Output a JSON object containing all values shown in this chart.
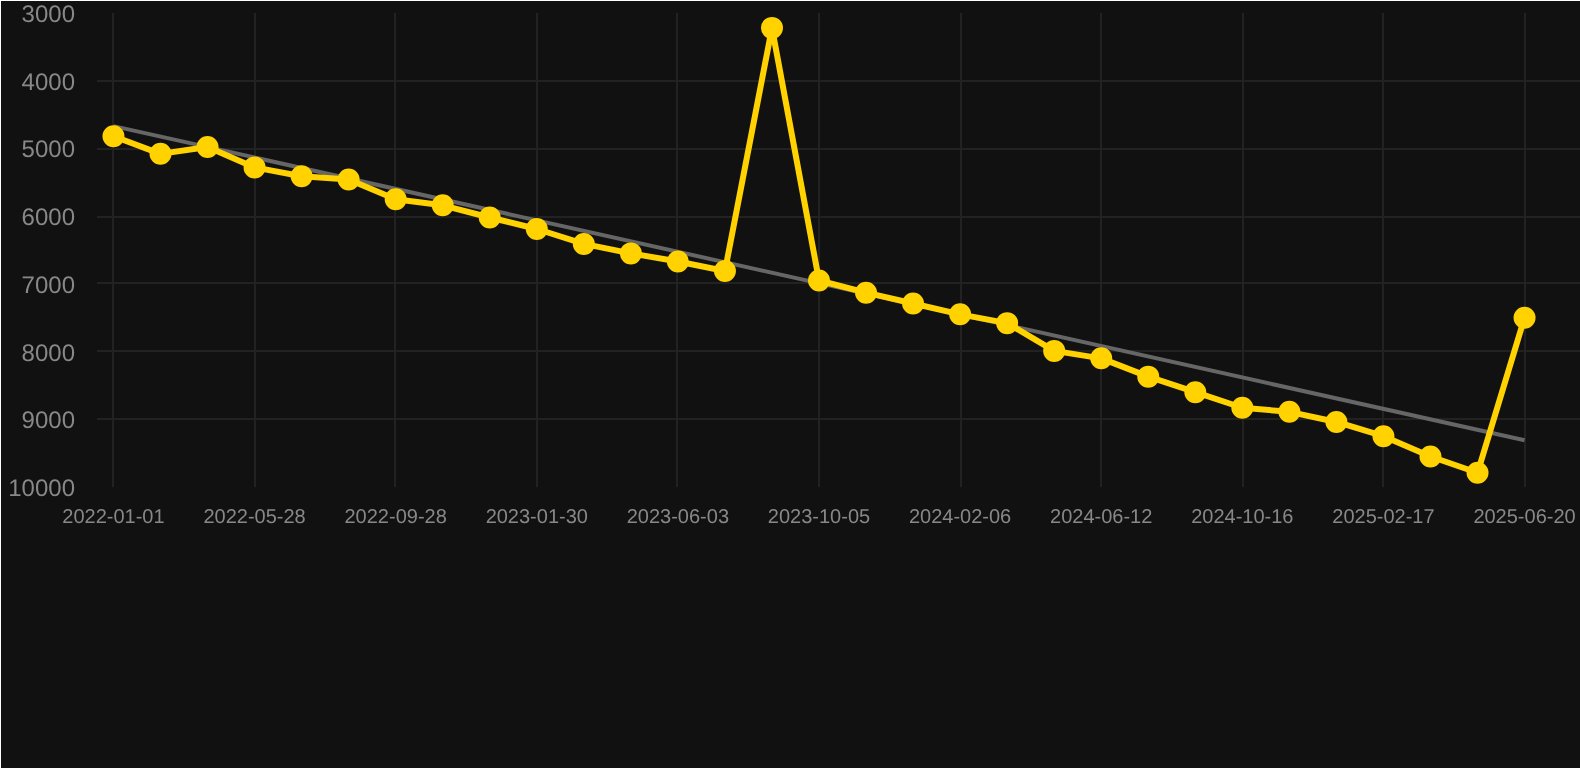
{
  "chart_data": {
    "type": "line",
    "categories": [
      "2022-01-01",
      null,
      null,
      "2022-05-28",
      null,
      null,
      "2022-09-28",
      null,
      null,
      "2023-01-30",
      null,
      null,
      "2023-06-03",
      null,
      null,
      "2023-10-05",
      null,
      null,
      "2024-02-06",
      null,
      null,
      "2024-06-12",
      null,
      null,
      "2024-10-16",
      null,
      null,
      "2025-02-17",
      null,
      null,
      "2025-06-20"
    ],
    "series": [
      {
        "color": "#666666",
        "marker": "none",
        "values": [
          4670,
          null,
          null,
          null,
          null,
          null,
          null,
          null,
          null,
          null,
          null,
          null,
          null,
          null,
          null,
          null,
          null,
          null,
          null,
          null,
          null,
          null,
          null,
          null,
          null,
          null,
          null,
          null,
          null,
          null,
          9310
        ]
      },
      {
        "color": "#ffd200",
        "marker": "circle",
        "values": [
          4820,
          5080,
          4980,
          5280,
          5410,
          5460,
          5750,
          5840,
          6020,
          6190,
          6410,
          6550,
          6670,
          6810,
          3220,
          6950,
          7130,
          7290,
          7450,
          7580,
          7990,
          8100,
          8370,
          8600,
          8830,
          8890,
          9040,
          9250,
          9550,
          9790,
          7500
        ]
      }
    ],
    "ylim": [
      10000,
      3000
    ],
    "yticks": [
      3000,
      4000,
      5000,
      6000,
      7000,
      8000,
      9000,
      10000
    ],
    "grid": true,
    "line_style": "solid"
  }
}
